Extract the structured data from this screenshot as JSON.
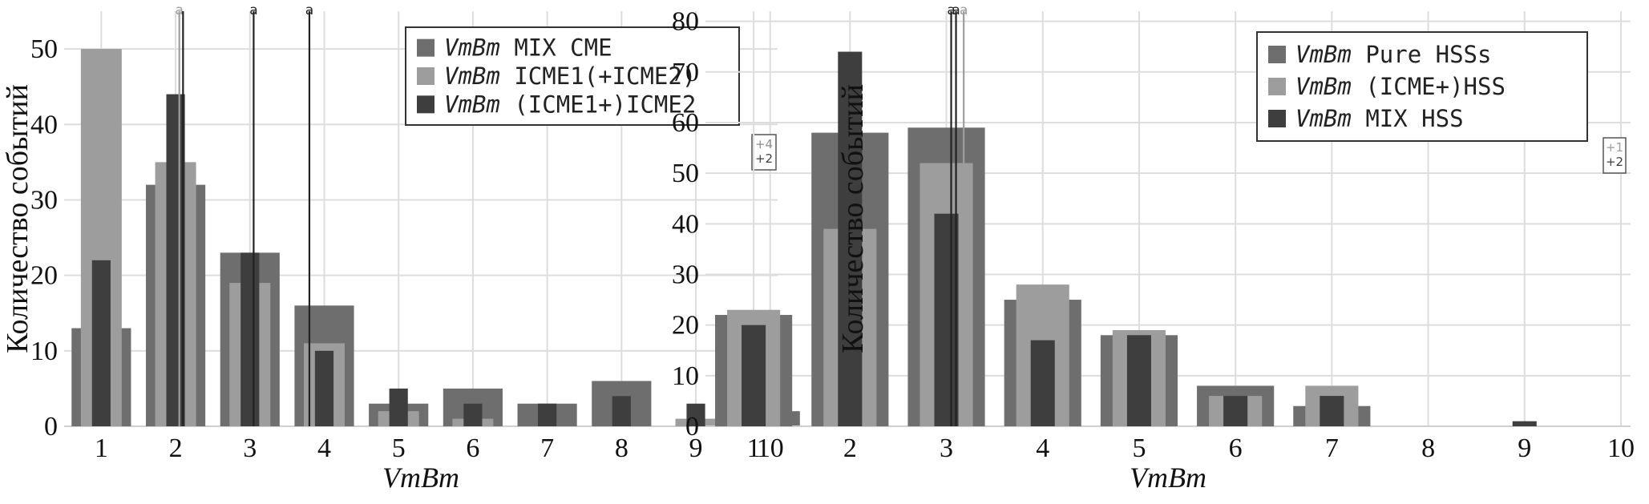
{
  "chart_data": [
    {
      "type": "bar",
      "xlabel": "VmBm",
      "ylabel": "Количество событий",
      "xlim": [
        0.5,
        10.1
      ],
      "ylim": [
        0,
        55
      ],
      "xticks": [
        1,
        2,
        3,
        4,
        5,
        6,
        7,
        8,
        9,
        10
      ],
      "yticks": [
        0,
        10,
        20,
        30,
        40,
        50
      ],
      "grid": true,
      "legend_position": "top-right",
      "x": [
        1,
        2,
        3,
        4,
        5,
        6,
        7,
        8,
        9,
        10
      ],
      "series": [
        {
          "name_italic": "VmBm",
          "name": "MIX CME",
          "color": "#6e6e6e",
          "width": 0.8,
          "values": [
            13,
            32,
            23,
            16,
            3,
            5,
            3,
            6,
            0,
            2
          ]
        },
        {
          "name_italic": "VmBm",
          "name": "ICME1(+ICME2)",
          "color": "#9d9d9d",
          "width": 0.55,
          "values": [
            50,
            35,
            19,
            11,
            2,
            1,
            0,
            0,
            1,
            0
          ]
        },
        {
          "name_italic": "VmBm",
          "name": "(ICME1+)ICME2",
          "color": "#3e3e3e",
          "width": 0.25,
          "values": [
            22,
            44,
            23,
            10,
            5,
            3,
            3,
            4,
            3,
            1
          ]
        }
      ],
      "mean_markers": [
        {
          "x": 2.05,
          "label": "a",
          "color": "#9d9d9d"
        },
        {
          "x": 2.1,
          "label": "",
          "color": "#222222"
        },
        {
          "x": 3.05,
          "label": "a",
          "color": "#222222"
        },
        {
          "x": 3.8,
          "label": "a",
          "color": "#222222"
        }
      ],
      "overflow_notes": [
        {
          "text": "+4",
          "color": "#8a8a8a"
        },
        {
          "text": "+2",
          "color": "#3e3e3e"
        }
      ]
    },
    {
      "type": "bar",
      "xlabel": "VmBm",
      "ylabel": "Количество событий",
      "xlim": [
        0.5,
        10.1
      ],
      "ylim": [
        0,
        82
      ],
      "xticks": [
        1,
        2,
        3,
        4,
        5,
        6,
        7,
        8,
        9,
        10
      ],
      "yticks": [
        0,
        10,
        20,
        30,
        40,
        50,
        60,
        70,
        80
      ],
      "grid": true,
      "legend_position": "top-right",
      "x": [
        1,
        2,
        3,
        4,
        5,
        6,
        7,
        8,
        9,
        10
      ],
      "series": [
        {
          "name_italic": "VmBm",
          "name": "Pure HSSs",
          "color": "#6e6e6e",
          "width": 0.8,
          "values": [
            22,
            58,
            59,
            25,
            18,
            8,
            4,
            0,
            0,
            0
          ]
        },
        {
          "name_italic": "VmBm",
          "name": "(ICME+)HSS",
          "color": "#9d9d9d",
          "width": 0.55,
          "values": [
            23,
            39,
            52,
            28,
            19,
            6,
            8,
            0,
            0,
            0
          ]
        },
        {
          "name_italic": "VmBm",
          "name": "MIX HSS",
          "color": "#3e3e3e",
          "width": 0.25,
          "values": [
            20,
            74,
            42,
            17,
            18,
            6,
            6,
            0,
            1,
            0
          ]
        }
      ],
      "mean_markers": [
        {
          "x": 3.05,
          "label": "a",
          "color": "#222222"
        },
        {
          "x": 3.1,
          "label": "a",
          "color": "#222222"
        },
        {
          "x": 3.18,
          "label": "a",
          "color": "#9d9d9d"
        }
      ],
      "overflow_notes": [
        {
          "text": "+1",
          "color": "#9d9d9d"
        },
        {
          "text": "+2",
          "color": "#3e3e3e"
        }
      ]
    }
  ]
}
